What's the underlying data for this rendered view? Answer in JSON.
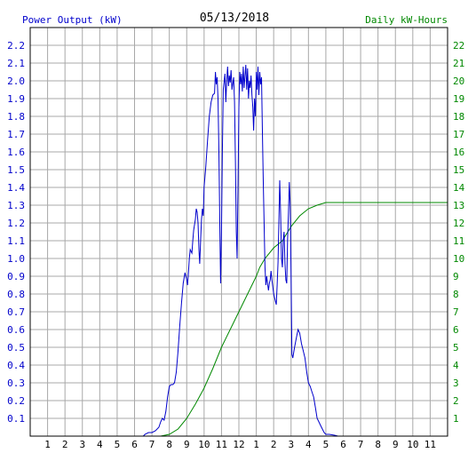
{
  "chart_data": {
    "type": "line",
    "title": "05/13/2018",
    "left_axis_label": "Power Output (kW)",
    "right_axis_label": "Daily kW-Hours",
    "x_ticks": [
      "1",
      "2",
      "3",
      "4",
      "5",
      "6",
      "7",
      "8",
      "9",
      "10",
      "11",
      "12",
      "1",
      "2",
      "3",
      "4",
      "5",
      "6",
      "7",
      "8",
      "9",
      "10",
      "11"
    ],
    "x_range_hours": [
      0,
      24
    ],
    "ylim_left": [
      0,
      2.3
    ],
    "ylim_right": [
      0,
      23
    ],
    "y_ticks_left": [
      "0.1",
      "0.2",
      "0.3",
      "0.4",
      "0.5",
      "0.6",
      "0.7",
      "0.8",
      "0.9",
      "1.0",
      "1.1",
      "1.2",
      "1.3",
      "1.4",
      "1.5",
      "1.6",
      "1.7",
      "1.8",
      "1.9",
      "2.0",
      "2.1",
      "2.2"
    ],
    "y_ticks_right": [
      "1",
      "2",
      "3",
      "4",
      "5",
      "6",
      "7",
      "8",
      "9",
      "10",
      "11",
      "12",
      "13",
      "14",
      "15",
      "16",
      "17",
      "18",
      "19",
      "20",
      "21",
      "22"
    ],
    "grid": true,
    "colors": {
      "power": "#0000cc",
      "energy": "#008800",
      "left_axis": "#0000cc",
      "right_axis": "#008800",
      "grid": "#a8a8a8",
      "frame": "#000000",
      "title": "#000000"
    },
    "series": [
      {
        "axis": "left",
        "points": [
          [
            0,
            0
          ],
          [
            6.5,
            0
          ],
          [
            6.6,
            0.01
          ],
          [
            6.8,
            0.02
          ],
          [
            7.0,
            0.02
          ],
          [
            7.2,
            0.03
          ],
          [
            7.4,
            0.05
          ],
          [
            7.5,
            0.08
          ],
          [
            7.6,
            0.1
          ],
          [
            7.7,
            0.09
          ],
          [
            7.8,
            0.14
          ],
          [
            7.9,
            0.22
          ],
          [
            8.0,
            0.28
          ],
          [
            8.1,
            0.29
          ],
          [
            8.2,
            0.29
          ],
          [
            8.3,
            0.3
          ],
          [
            8.4,
            0.36
          ],
          [
            8.5,
            0.48
          ],
          [
            8.6,
            0.62
          ],
          [
            8.7,
            0.75
          ],
          [
            8.8,
            0.86
          ],
          [
            8.9,
            0.92
          ],
          [
            9.0,
            0.88
          ],
          [
            9.05,
            0.85
          ],
          [
            9.1,
            0.92
          ],
          [
            9.15,
            1.0
          ],
          [
            9.2,
            1.05
          ],
          [
            9.3,
            1.03
          ],
          [
            9.35,
            1.1
          ],
          [
            9.4,
            1.16
          ],
          [
            9.5,
            1.22
          ],
          [
            9.55,
            1.28
          ],
          [
            9.6,
            1.26
          ],
          [
            9.65,
            1.2
          ],
          [
            9.7,
            1.05
          ],
          [
            9.75,
            0.97
          ],
          [
            9.8,
            1.1
          ],
          [
            9.85,
            1.22
          ],
          [
            9.9,
            1.28
          ],
          [
            9.95,
            1.24
          ],
          [
            10.0,
            1.4
          ],
          [
            10.1,
            1.52
          ],
          [
            10.2,
            1.67
          ],
          [
            10.3,
            1.8
          ],
          [
            10.4,
            1.88
          ],
          [
            10.5,
            1.92
          ],
          [
            10.6,
            1.93
          ],
          [
            10.65,
            2.05
          ],
          [
            10.7,
            1.98
          ],
          [
            10.75,
            2.02
          ],
          [
            10.8,
            1.9
          ],
          [
            10.85,
            1.6
          ],
          [
            10.9,
            1.2
          ],
          [
            10.95,
            0.86
          ],
          [
            11.0,
            1.15
          ],
          [
            11.05,
            1.6
          ],
          [
            11.1,
            1.95
          ],
          [
            11.2,
            2.04
          ],
          [
            11.25,
            1.88
          ],
          [
            11.3,
            2.0
          ],
          [
            11.35,
            2.08
          ],
          [
            11.4,
            1.97
          ],
          [
            11.45,
            2.03
          ],
          [
            11.5,
            1.99
          ],
          [
            11.55,
            2.06
          ],
          [
            11.6,
            1.95
          ],
          [
            11.7,
            2.02
          ],
          [
            11.75,
            1.88
          ],
          [
            11.8,
            1.55
          ],
          [
            11.85,
            1.15
          ],
          [
            11.9,
            1.0
          ],
          [
            11.95,
            1.4
          ],
          [
            12.0,
            1.85
          ],
          [
            12.05,
            2.05
          ],
          [
            12.1,
            1.98
          ],
          [
            12.15,
            2.04
          ],
          [
            12.2,
            1.94
          ],
          [
            12.25,
            2.08
          ],
          [
            12.3,
            1.96
          ],
          [
            12.35,
            2.03
          ],
          [
            12.4,
            2.09
          ],
          [
            12.45,
            1.95
          ],
          [
            12.5,
            2.07
          ],
          [
            12.55,
            1.9
          ],
          [
            12.6,
            2.0
          ],
          [
            12.65,
            1.96
          ],
          [
            12.7,
            2.03
          ],
          [
            12.75,
            1.92
          ],
          [
            12.8,
            1.85
          ],
          [
            12.85,
            1.72
          ],
          [
            12.9,
            1.9
          ],
          [
            12.95,
            1.8
          ],
          [
            13.0,
            2.05
          ],
          [
            13.05,
            1.95
          ],
          [
            13.1,
            2.08
          ],
          [
            13.15,
            1.92
          ],
          [
            13.2,
            2.05
          ],
          [
            13.25,
            1.98
          ],
          [
            13.3,
            2.02
          ],
          [
            13.35,
            1.74
          ],
          [
            13.4,
            1.45
          ],
          [
            13.45,
            1.2
          ],
          [
            13.5,
            0.95
          ],
          [
            13.55,
            0.85
          ],
          [
            13.6,
            0.9
          ],
          [
            13.7,
            0.82
          ],
          [
            13.75,
            0.86
          ],
          [
            13.8,
            0.88
          ],
          [
            13.85,
            0.93
          ],
          [
            13.9,
            0.88
          ],
          [
            14.0,
            0.8
          ],
          [
            14.1,
            0.76
          ],
          [
            14.15,
            0.74
          ],
          [
            14.2,
            0.85
          ],
          [
            14.25,
            0.98
          ],
          [
            14.3,
            1.2
          ],
          [
            14.35,
            1.44
          ],
          [
            14.4,
            1.25
          ],
          [
            14.45,
            1.0
          ],
          [
            14.5,
            0.95
          ],
          [
            14.55,
            1.1
          ],
          [
            14.6,
            1.15
          ],
          [
            14.65,
            0.97
          ],
          [
            14.7,
            0.88
          ],
          [
            14.75,
            0.86
          ],
          [
            14.8,
            1.1
          ],
          [
            14.85,
            1.25
          ],
          [
            14.9,
            1.43
          ],
          [
            14.95,
            1.3
          ],
          [
            15.0,
            0.9
          ],
          [
            15.05,
            0.46
          ],
          [
            15.1,
            0.44
          ],
          [
            15.15,
            0.47
          ],
          [
            15.2,
            0.5
          ],
          [
            15.3,
            0.55
          ],
          [
            15.4,
            0.6
          ],
          [
            15.5,
            0.58
          ],
          [
            15.6,
            0.52
          ],
          [
            15.7,
            0.48
          ],
          [
            15.8,
            0.44
          ],
          [
            15.9,
            0.36
          ],
          [
            16.0,
            0.3
          ],
          [
            16.1,
            0.28
          ],
          [
            16.2,
            0.25
          ],
          [
            16.3,
            0.22
          ],
          [
            16.4,
            0.16
          ],
          [
            16.5,
            0.1
          ],
          [
            16.6,
            0.08
          ],
          [
            16.7,
            0.06
          ],
          [
            16.8,
            0.04
          ],
          [
            16.9,
            0.02
          ],
          [
            17.0,
            0.01
          ],
          [
            17.2,
            0.01
          ],
          [
            17.5,
            0.005
          ],
          [
            17.7,
            0
          ],
          [
            24,
            0
          ]
        ]
      },
      {
        "axis": "right",
        "points": [
          [
            0,
            0
          ],
          [
            7.5,
            0
          ],
          [
            8.0,
            0.1
          ],
          [
            8.5,
            0.4
          ],
          [
            9.0,
            1.0
          ],
          [
            9.5,
            1.8
          ],
          [
            10.0,
            2.7
          ],
          [
            10.5,
            3.8
          ],
          [
            11.0,
            5.0
          ],
          [
            11.5,
            6.0
          ],
          [
            12.0,
            7.0
          ],
          [
            12.5,
            8.0
          ],
          [
            13.0,
            9.0
          ],
          [
            13.2,
            9.5
          ],
          [
            13.5,
            10.0
          ],
          [
            14.0,
            10.6
          ],
          [
            14.5,
            11.0
          ],
          [
            15.0,
            11.8
          ],
          [
            15.5,
            12.4
          ],
          [
            16.0,
            12.8
          ],
          [
            16.5,
            13.0
          ],
          [
            17.0,
            13.15
          ],
          [
            24,
            13.15
          ]
        ]
      }
    ]
  }
}
